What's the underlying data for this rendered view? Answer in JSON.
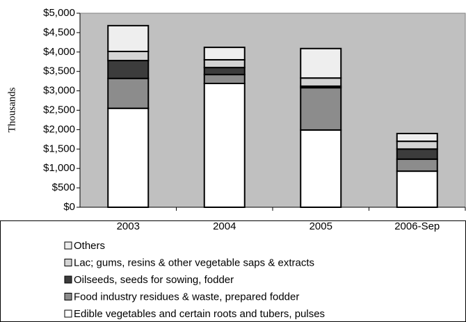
{
  "chart_data": {
    "type": "stacked_bar",
    "ylabel": "Thousands",
    "categories": [
      "2003",
      "2004",
      "2005",
      "2006-Sep"
    ],
    "series": [
      {
        "name": "Edible vegetables and certain roots and tubers, pulses",
        "color": "#ffffff",
        "values": [
          2550,
          3190,
          1990,
          930
        ]
      },
      {
        "name": "Food industry residues & waste, prepared fodder",
        "color": "#8c8c8c",
        "values": [
          770,
          230,
          1090,
          310
        ]
      },
      {
        "name": "Oilseeds, seeds for sowing, fodder",
        "color": "#3c3c3c",
        "values": [
          460,
          180,
          40,
          260
        ]
      },
      {
        "name": "Lac; gums, resins & other vegetable saps & extracts",
        "color": "#d4d4d4",
        "values": [
          235,
          200,
          210,
          200
        ]
      },
      {
        "name": "Others",
        "color": "#eeeeee",
        "values": [
          665,
          320,
          760,
          200
        ]
      }
    ],
    "ylim": [
      0,
      5000
    ],
    "yticks": [
      {
        "value": 0,
        "label": "$0"
      },
      {
        "value": 500,
        "label": "$500"
      },
      {
        "value": 1000,
        "label": "$1,000"
      },
      {
        "value": 1500,
        "label": "$1,500"
      },
      {
        "value": 2000,
        "label": "$2,000"
      },
      {
        "value": 2500,
        "label": "$2,500"
      },
      {
        "value": 3000,
        "label": "$3,000"
      },
      {
        "value": 3500,
        "label": "$3,500"
      },
      {
        "value": 4000,
        "label": "$4,000"
      },
      {
        "value": 4500,
        "label": "$4,500"
      },
      {
        "value": 5000,
        "label": "$5,000"
      }
    ],
    "plot_background": "#c0c0c0"
  }
}
